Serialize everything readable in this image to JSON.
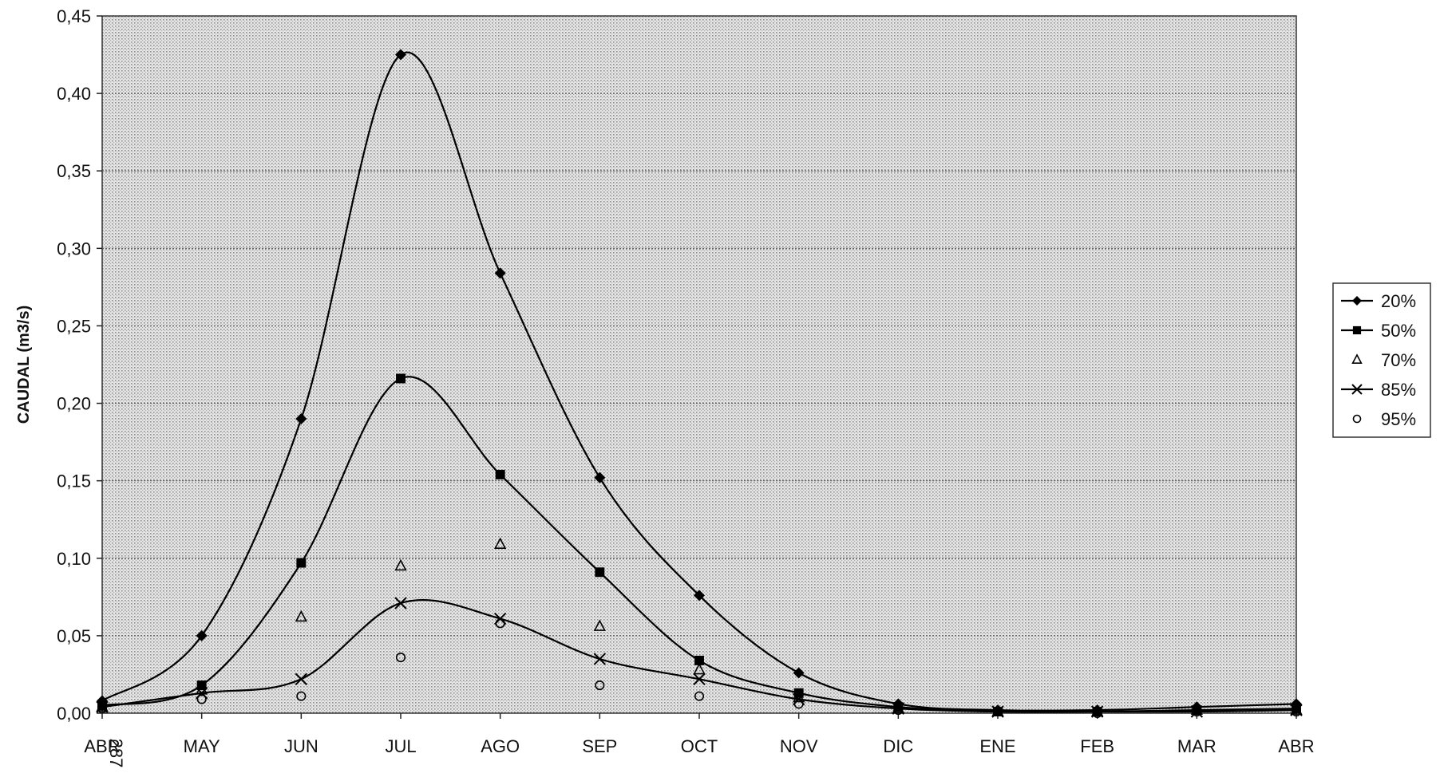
{
  "page_number": "287",
  "chart_data": {
    "type": "line",
    "title": "",
    "xlabel": "",
    "ylabel": "CAUDAL (m3/s)",
    "categories": [
      "ABR",
      "MAY",
      "JUN",
      "JUL",
      "AGO",
      "SEP",
      "OCT",
      "NOV",
      "DIC",
      "ENE",
      "FEB",
      "MAR",
      "ABR"
    ],
    "ylim": [
      0,
      0.45
    ],
    "yticks": [
      "0,00",
      "0,05",
      "0,10",
      "0,15",
      "0,20",
      "0,25",
      "0,30",
      "0,35",
      "0,40",
      "0,45"
    ],
    "grid": true,
    "legend_position": "right",
    "series": [
      {
        "name": "20%",
        "marker": "diamond",
        "line": true,
        "color": "#000000",
        "values": [
          0.008,
          0.05,
          0.19,
          0.425,
          0.284,
          0.152,
          0.076,
          0.026,
          0.006,
          0.002,
          0.002,
          0.004,
          0.006
        ]
      },
      {
        "name": "50%",
        "marker": "square",
        "line": true,
        "color": "#000000",
        "values": [
          0.005,
          0.018,
          0.097,
          0.216,
          0.154,
          0.091,
          0.034,
          0.013,
          0.004,
          0.001,
          0.001,
          0.002,
          0.003
        ]
      },
      {
        "name": "70%",
        "marker": "triangle",
        "line": false,
        "color": "#000000",
        "values": [
          0.004,
          0.015,
          0.062,
          0.095,
          0.109,
          0.056,
          0.028,
          0.01,
          0.003,
          0.001,
          0.001,
          0.002,
          0.002
        ]
      },
      {
        "name": "85%",
        "marker": "x",
        "line": true,
        "color": "#000000",
        "values": [
          0.004,
          0.013,
          0.022,
          0.071,
          0.061,
          0.035,
          0.022,
          0.009,
          0.003,
          0.001,
          0.001,
          0.001,
          0.002
        ]
      },
      {
        "name": "95%",
        "marker": "circle",
        "line": false,
        "color": "#000000",
        "values": [
          0.003,
          0.009,
          0.011,
          0.036,
          0.058,
          0.018,
          0.011,
          0.006,
          0.002,
          0.001,
          0.0,
          0.001,
          0.001
        ]
      }
    ]
  }
}
